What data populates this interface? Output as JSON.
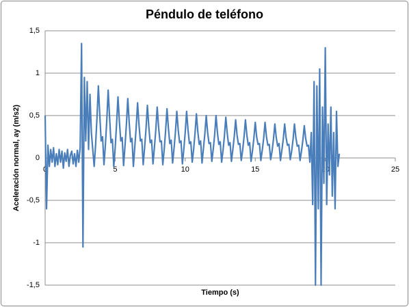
{
  "chart_data": {
    "type": "line",
    "title": "Péndulo de teléfono",
    "x_label": "Tiempo (s)",
    "y_label": "Aceleración normal, ay (m/s2)",
    "color": "#4a7ebb",
    "grid": true,
    "xlim": [
      0,
      25
    ],
    "xticks": [
      0,
      5,
      10,
      15,
      20,
      25
    ],
    "ylim": [
      -1.5,
      1.5
    ],
    "yticks": [
      {
        "value": 1.5,
        "label": "1,5"
      },
      1,
      {
        "value": 0.5,
        "label": "0,5"
      },
      0,
      {
        "value": -0.5,
        "label": "-0,5"
      },
      -1,
      {
        "value": -1.5,
        "label": "-1,5"
      }
    ],
    "x": [
      0,
      0.1,
      0.2,
      0.3,
      0.4,
      0.5,
      0.6,
      0.7,
      0.8,
      0.9,
      1,
      1.1,
      1.2,
      1.3,
      1.4,
      1.5,
      1.6,
      1.7,
      1.8,
      1.9,
      2,
      2.1,
      2.2,
      2.3,
      2.4,
      2.5,
      2.6,
      2.7,
      2.8,
      2.9,
      3,
      3.1,
      3.2,
      3.3,
      3.4,
      3.5,
      3.6,
      3.7,
      3.8,
      3.9,
      4,
      4.1,
      4.2,
      4.3,
      4.4,
      4.5,
      4.6,
      4.7,
      4.8,
      4.9,
      5,
      5.1,
      5.2,
      5.3,
      5.4,
      5.5,
      5.6,
      5.7,
      5.8,
      5.9,
      6,
      6.1,
      6.2,
      6.3,
      6.4,
      6.5,
      6.6,
      6.7,
      6.8,
      6.9,
      7,
      7.1,
      7.2,
      7.3,
      7.4,
      7.5,
      7.6,
      7.7,
      7.8,
      7.9,
      8,
      8.1,
      8.2,
      8.3,
      8.4,
      8.5,
      8.6,
      8.7,
      8.8,
      8.9,
      9,
      9.1,
      9.2,
      9.3,
      9.4,
      9.5,
      9.6,
      9.7,
      9.8,
      9.9,
      10,
      10.1,
      10.2,
      10.3,
      10.4,
      10.5,
      10.6,
      10.7,
      10.8,
      10.9,
      11,
      11.1,
      11.2,
      11.3,
      11.4,
      11.5,
      11.6,
      11.7,
      11.8,
      11.9,
      12,
      12.1,
      12.2,
      12.3,
      12.4,
      12.5,
      12.6,
      12.7,
      12.8,
      12.9,
      13,
      13.1,
      13.2,
      13.3,
      13.4,
      13.5,
      13.6,
      13.7,
      13.8,
      13.9,
      14,
      14.1,
      14.2,
      14.3,
      14.4,
      14.5,
      14.6,
      14.7,
      14.8,
      14.9,
      15,
      15.1,
      15.2,
      15.3,
      15.4,
      15.5,
      15.6,
      15.7,
      15.8,
      15.9,
      16,
      16.1,
      16.2,
      16.3,
      16.4,
      16.5,
      16.6,
      16.7,
      16.8,
      16.9,
      17,
      17.1,
      17.2,
      17.3,
      17.4,
      17.5,
      17.6,
      17.7,
      17.8,
      17.9,
      18,
      18.1,
      18.2,
      18.3,
      18.4,
      18.5,
      18.6,
      18.7,
      18.8,
      18.9,
      19,
      19.1,
      19.2,
      19.3,
      19.4,
      19.5,
      19.6,
      19.7,
      19.8,
      19.9,
      20,
      20.1,
      20.2,
      20.3,
      20.4,
      20.5,
      20.6,
      20.7,
      20.8,
      20.9,
      21
    ],
    "values": [
      0.5,
      -0.6,
      0.15,
      -0.1,
      0.1,
      -0.05,
      0.12,
      -0.1,
      0.05,
      -0.08,
      0.1,
      -0.05,
      0.08,
      -0.12,
      0.06,
      -0.04,
      0.1,
      -0.1,
      0.03,
      0.08,
      -0.07,
      0.05,
      -0.1,
      0.09,
      -0.05,
      0.12,
      1.35,
      -1.05,
      0.95,
      0.2,
      0.9,
      0.1,
      0.75,
      0.3,
      0.1,
      -0.1,
      0.15,
      0.47,
      0.85,
      0.51,
      0.2,
      0.25,
      -0.08,
      0.15,
      0.44,
      0.8,
      0.48,
      0.18,
      0.22,
      -0.1,
      0.12,
      0.4,
      0.72,
      0.43,
      0.2,
      0.24,
      -0.09,
      0.14,
      0.39,
      0.7,
      0.42,
      0.19,
      0.23,
      -0.1,
      0.13,
      0.36,
      0.65,
      0.39,
      0.2,
      0.22,
      -0.08,
      0.12,
      0.34,
      0.62,
      0.37,
      0.18,
      0.21,
      -0.07,
      0.12,
      0.33,
      0.6,
      0.36,
      0.19,
      0.2,
      -0.08,
      0.1,
      0.32,
      0.58,
      0.35,
      0.17,
      0.21,
      -0.06,
      0.11,
      0.3,
      0.55,
      0.33,
      0.18,
      0.2,
      -0.07,
      0.1,
      0.3,
      0.55,
      0.33,
      0.17,
      0.19,
      -0.05,
      0.1,
      0.29,
      0.52,
      0.31,
      0.16,
      0.2,
      -0.06,
      0.11,
      0.28,
      0.5,
      0.3,
      0.17,
      0.18,
      -0.04,
      0.1,
      0.27,
      0.5,
      0.3,
      0.16,
      0.19,
      -0.05,
      0.09,
      0.26,
      0.48,
      0.29,
      0.15,
      0.18,
      -0.04,
      0.1,
      0.25,
      0.45,
      0.27,
      0.16,
      0.17,
      -0.03,
      0.09,
      0.25,
      0.45,
      0.27,
      0.15,
      0.18,
      -0.04,
      0.08,
      0.23,
      0.42,
      0.25,
      0.16,
      0.17,
      -0.03,
      0.09,
      0.23,
      0.42,
      0.25,
      0.15,
      0.16,
      -0.02,
      0.08,
      0.22,
      0.4,
      0.24,
      0.14,
      0.17,
      -0.03,
      0.09,
      0.22,
      0.4,
      0.24,
      0.15,
      0.16,
      -0.02,
      0.08,
      0.22,
      0.4,
      0.24,
      0.14,
      0.15,
      -0.03,
      0.08,
      0.21,
      0.38,
      0.23,
      0.14,
      0.15,
      -0.05,
      0.3,
      -0.55,
      0.9,
      -1.5,
      0.85,
      -0.6,
      1.05,
      -1.5,
      0.6,
      -0.3,
      1.3,
      -0.55,
      0.4,
      -0.2,
      0.6,
      -0.45,
      0.3,
      -0.6,
      0.55,
      -0.1,
      0.05
    ]
  }
}
